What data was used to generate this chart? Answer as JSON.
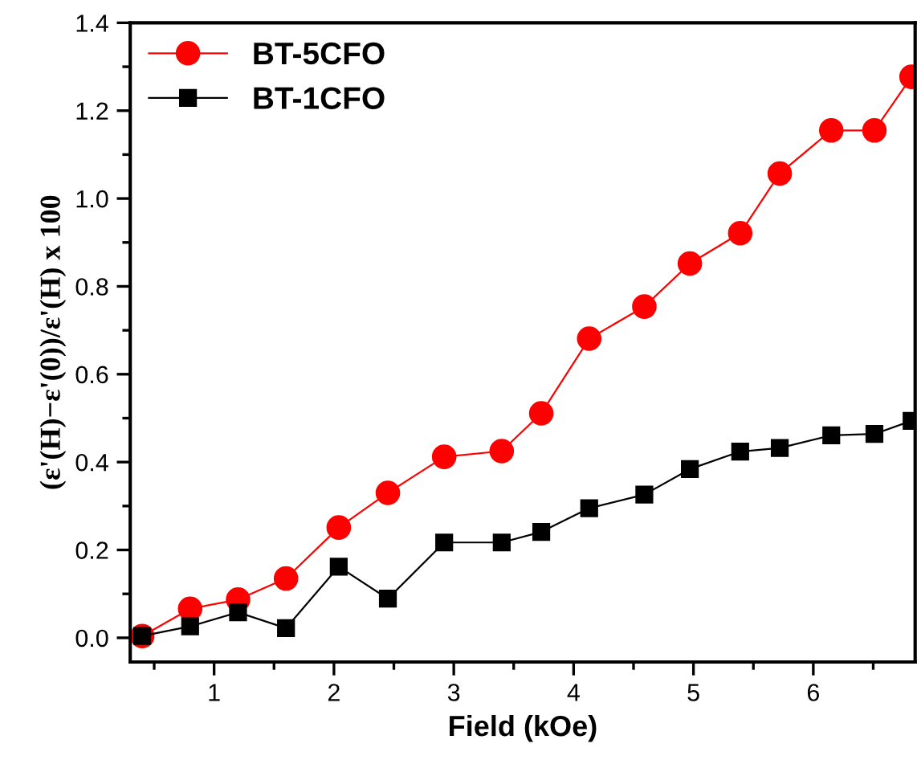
{
  "chart_data": {
    "type": "line",
    "xlabel": "Field (kOe)",
    "ylabel": "(ε'(H)−ε'(0))/ε'(H) x 100",
    "x": [
      0.4,
      0.8,
      1.2,
      1.6,
      2.04,
      2.45,
      2.92,
      3.4,
      3.73,
      4.13,
      4.59,
      4.97,
      5.39,
      5.72,
      6.15,
      6.51,
      6.82
    ],
    "series": [
      {
        "name": "BT-5CFO",
        "color": "#ff0000",
        "marker": "circle",
        "values": [
          0.004,
          0.066,
          0.087,
          0.135,
          0.251,
          0.33,
          0.412,
          0.425,
          0.511,
          0.681,
          0.754,
          0.852,
          0.921,
          1.057,
          1.155,
          1.155,
          1.277
        ]
      },
      {
        "name": "BT-1CFO",
        "color": "#000000",
        "marker": "square",
        "values": [
          0.004,
          0.026,
          0.058,
          0.022,
          0.162,
          0.089,
          0.217,
          0.217,
          0.241,
          0.295,
          0.326,
          0.384,
          0.424,
          0.432,
          0.461,
          0.464,
          0.494
        ]
      }
    ],
    "xlim": [
      0.3,
      6.85
    ],
    "ylim": [
      -0.055,
      1.4
    ],
    "xticks": [
      1,
      2,
      3,
      4,
      5,
      6
    ],
    "yticks": [
      {
        "value": 0,
        "label": "0.0"
      },
      {
        "value": 0.2,
        "label": "0.2"
      },
      {
        "value": 0.4,
        "label": "0.4"
      },
      {
        "value": 0.6,
        "label": "0.6"
      },
      {
        "value": 0.8,
        "label": "0.8"
      },
      {
        "value": 1.0,
        "label": "1.0"
      },
      {
        "value": 1.2,
        "label": "1.2"
      },
      {
        "value": 1.4,
        "label": "1.4"
      }
    ],
    "grid": false,
    "legend": "top left",
    "line_style": "solid"
  }
}
